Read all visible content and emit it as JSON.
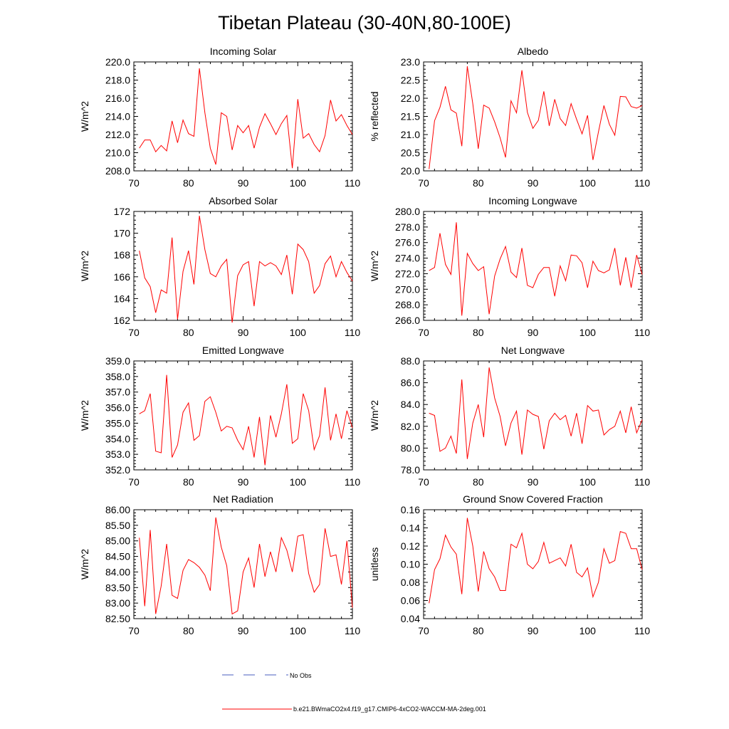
{
  "figure": {
    "title": "Tibetan Plateau (30-40N,80-100E)",
    "line_color": "#ff0000",
    "obs_color": "#4a5dbf",
    "legend": {
      "obs_label": "No Obs",
      "model_label": "b.e21.BWmaCO2x4.f19_g17.CMIP6-4xCO2-WACCM-MA-2deg.001"
    }
  },
  "chart_data": [
    {
      "type": "line",
      "title": "Incoming Solar",
      "xlabel": "",
      "ylabel": "W/m^2",
      "xlim": [
        70,
        110
      ],
      "ylim": [
        208,
        220
      ],
      "yticks": [
        "208.0",
        "210.0",
        "212.0",
        "214.0",
        "216.0",
        "218.0",
        "220.0"
      ],
      "xticks": [
        "70",
        "80",
        "90",
        "100",
        "110"
      ],
      "series": [
        {
          "x_start": 71,
          "values": [
            210.5,
            211.4,
            211.4,
            210.1,
            210.8,
            210.2,
            213.5,
            211.1,
            213.6,
            212.1,
            211.8,
            219.3,
            214.4,
            210.5,
            208.7,
            214.4,
            214.0,
            210.3,
            213.0,
            212.2,
            213.0,
            210.5,
            212.8,
            214.3,
            213.2,
            212.0,
            213.2,
            214.1,
            208.3,
            215.9,
            211.6,
            212.1,
            210.9,
            210.1,
            211.9,
            215.8,
            213.5,
            214.2,
            213.0,
            212.0
          ]
        }
      ]
    },
    {
      "type": "line",
      "title": "Albedo",
      "xlabel": "",
      "ylabel": "% reflected",
      "xlim": [
        70,
        110
      ],
      "ylim": [
        20,
        23
      ],
      "yticks": [
        "20.0",
        "20.5",
        "21.0",
        "21.5",
        "22.0",
        "22.5",
        "23.0"
      ],
      "xticks": [
        "70",
        "80",
        "90",
        "100",
        "110"
      ],
      "series": [
        {
          "x_start": 71,
          "values": [
            20.05,
            21.38,
            21.75,
            22.33,
            21.68,
            21.59,
            20.68,
            22.88,
            21.85,
            20.61,
            21.81,
            21.73,
            21.35,
            20.91,
            20.37,
            21.93,
            21.6,
            22.77,
            21.61,
            21.17,
            21.39,
            22.19,
            21.24,
            21.97,
            21.44,
            21.25,
            21.85,
            21.42,
            21.02,
            21.53,
            20.3,
            21.07,
            21.8,
            21.28,
            20.98,
            22.05,
            22.04,
            21.77,
            21.73,
            21.8
          ]
        }
      ]
    },
    {
      "type": "line",
      "title": "Absorbed Solar",
      "xlabel": "",
      "ylabel": "W/m^2",
      "xlim": [
        70,
        110
      ],
      "ylim": [
        162,
        172
      ],
      "yticks": [
        "162",
        "164",
        "166",
        "168",
        "170",
        "172"
      ],
      "xticks": [
        "70",
        "80",
        "90",
        "100",
        "110"
      ],
      "series": [
        {
          "x_start": 71,
          "values": [
            168.4,
            165.9,
            165.1,
            162.7,
            164.8,
            164.5,
            169.6,
            162.1,
            166.5,
            168.4,
            165.3,
            171.6,
            168.5,
            166.3,
            166.0,
            167.0,
            167.6,
            161.8,
            166.1,
            167.1,
            167.4,
            163.3,
            167.4,
            167.0,
            167.3,
            167.0,
            166.2,
            168.0,
            164.4,
            169.0,
            168.5,
            167.4,
            164.5,
            165.2,
            167.2,
            167.9,
            166.0,
            167.4,
            166.4,
            165.6
          ]
        }
      ]
    },
    {
      "type": "line",
      "title": "Incoming Longwave",
      "xlabel": "",
      "ylabel": "W/m^2",
      "xlim": [
        70,
        110
      ],
      "ylim": [
        266,
        280
      ],
      "yticks": [
        "266.0",
        "268.0",
        "270.0",
        "272.0",
        "274.0",
        "276.0",
        "278.0",
        "280.0"
      ],
      "xticks": [
        "70",
        "80",
        "90",
        "100",
        "110"
      ],
      "series": [
        {
          "x_start": 71,
          "values": [
            272.4,
            272.8,
            277.2,
            273.2,
            271.9,
            278.6,
            266.6,
            274.6,
            273.3,
            272.4,
            272.9,
            266.8,
            271.7,
            273.9,
            275.5,
            272.2,
            271.5,
            275.3,
            270.5,
            270.2,
            271.9,
            272.8,
            272.8,
            269.1,
            273.0,
            271.1,
            274.4,
            274.3,
            273.4,
            270.2,
            273.6,
            272.4,
            272.1,
            272.5,
            275.3,
            270.5,
            274.1,
            270.2,
            274.4,
            271.9
          ]
        }
      ]
    },
    {
      "type": "line",
      "title": "Emitted Longwave",
      "xlabel": "",
      "ylabel": "W/m^2",
      "xlim": [
        70,
        110
      ],
      "ylim": [
        352,
        359
      ],
      "yticks": [
        "352.0",
        "353.0",
        "354.0",
        "355.0",
        "356.0",
        "357.0",
        "358.0",
        "359.0"
      ],
      "xticks": [
        "70",
        "80",
        "90",
        "100",
        "110"
      ],
      "series": [
        {
          "x_start": 71,
          "values": [
            355.6,
            355.8,
            356.9,
            353.2,
            353.1,
            358.1,
            352.8,
            353.6,
            355.7,
            356.3,
            353.9,
            354.2,
            356.4,
            356.7,
            355.7,
            354.5,
            354.8,
            354.7,
            353.9,
            353.3,
            354.8,
            352.8,
            355.4,
            352.3,
            355.5,
            354.1,
            355.6,
            357.5,
            353.7,
            354.0,
            356.9,
            355.8,
            353.3,
            354.2,
            357.3,
            353.9,
            355.6,
            354.0,
            355.8,
            354.7
          ]
        }
      ]
    },
    {
      "type": "line",
      "title": "Net Longwave",
      "xlabel": "",
      "ylabel": "W/m^2",
      "xlim": [
        70,
        110
      ],
      "ylim": [
        78,
        88
      ],
      "yticks": [
        "78.0",
        "80.0",
        "82.0",
        "84.0",
        "86.0",
        "88.0"
      ],
      "xticks": [
        "70",
        "80",
        "90",
        "100",
        "110"
      ],
      "series": [
        {
          "x_start": 71,
          "values": [
            83.2,
            83.0,
            79.7,
            80.0,
            81.1,
            79.5,
            86.3,
            79.0,
            82.3,
            84.0,
            81.0,
            87.4,
            84.6,
            82.9,
            80.2,
            82.3,
            83.4,
            79.4,
            83.5,
            83.1,
            82.9,
            79.9,
            82.5,
            83.2,
            82.6,
            83.0,
            81.1,
            83.2,
            80.4,
            83.9,
            83.4,
            83.5,
            81.2,
            81.7,
            82.0,
            83.4,
            81.4,
            83.8,
            81.4,
            82.6
          ]
        }
      ]
    },
    {
      "type": "line",
      "title": "Net Radiation",
      "xlabel": "",
      "ylabel": "W/m^2",
      "xlim": [
        70,
        110
      ],
      "ylim": [
        82.5,
        86
      ],
      "yticks": [
        "82.50",
        "83.00",
        "83.50",
        "84.00",
        "84.50",
        "85.00",
        "85.50",
        "86.00"
      ],
      "xticks": [
        "70",
        "80",
        "90",
        "100",
        "110"
      ],
      "series": [
        {
          "x_start": 71,
          "values": [
            85.1,
            82.9,
            85.35,
            82.65,
            83.55,
            84.9,
            83.25,
            83.15,
            84.05,
            84.4,
            84.3,
            84.15,
            83.9,
            83.4,
            85.75,
            84.8,
            84.2,
            82.65,
            82.75,
            84.0,
            84.45,
            83.5,
            84.9,
            83.85,
            84.65,
            84.0,
            85.1,
            84.7,
            84.0,
            85.15,
            85.2,
            83.95,
            83.35,
            83.6,
            85.4,
            84.5,
            84.55,
            83.6,
            85.0,
            82.85
          ]
        }
      ]
    },
    {
      "type": "line",
      "title": "Ground Snow Covered Fraction",
      "xlabel": "",
      "ylabel": "unitless",
      "xlim": [
        70,
        110
      ],
      "ylim": [
        0.04,
        0.16
      ],
      "yticks": [
        "0.04",
        "0.06",
        "0.08",
        "0.10",
        "0.12",
        "0.14",
        "0.16"
      ],
      "xticks": [
        "70",
        "80",
        "90",
        "100",
        "110"
      ],
      "series": [
        {
          "x_start": 71,
          "values": [
            0.057,
            0.094,
            0.106,
            0.132,
            0.119,
            0.111,
            0.067,
            0.151,
            0.12,
            0.07,
            0.114,
            0.095,
            0.086,
            0.071,
            0.071,
            0.122,
            0.118,
            0.134,
            0.1,
            0.095,
            0.103,
            0.124,
            0.101,
            0.104,
            0.107,
            0.098,
            0.122,
            0.091,
            0.086,
            0.096,
            0.064,
            0.08,
            0.117,
            0.101,
            0.104,
            0.136,
            0.134,
            0.117,
            0.117,
            0.094
          ]
        }
      ]
    }
  ]
}
